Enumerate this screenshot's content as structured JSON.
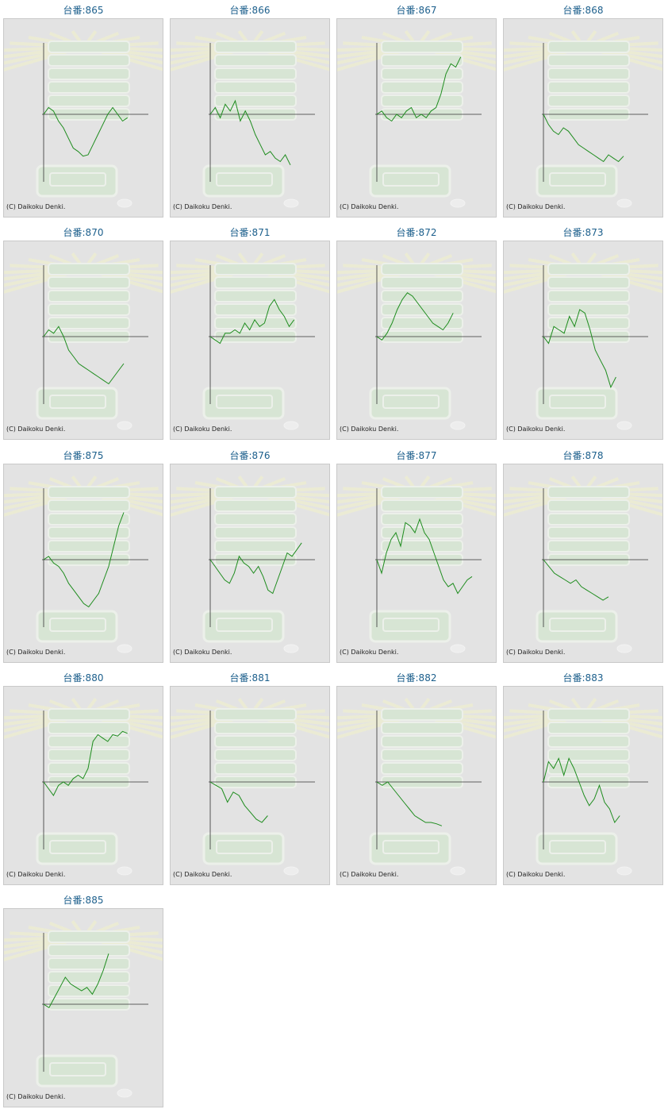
{
  "copyright": "(C) Daikoku Denki.",
  "colors": {
    "line": "#1e8c1e",
    "axis": "#333333",
    "title": "#1c5f8c",
    "panel": "#e3e3e3"
  },
  "chart_data": [
    {
      "type": "line",
      "title": "台番:865",
      "ylim": [
        -1,
        1
      ],
      "values": [
        0,
        0.1,
        0.05,
        -0.1,
        -0.2,
        -0.35,
        -0.5,
        -0.55,
        -0.62,
        -0.6,
        -0.45,
        -0.3,
        -0.15,
        0,
        0.1,
        0,
        -0.1,
        -0.05
      ]
    },
    {
      "type": "line",
      "title": "台番:866",
      "ylim": [
        -1,
        1
      ],
      "values": [
        0,
        0.1,
        -0.05,
        0.15,
        0.05,
        0.2,
        -0.1,
        0.05,
        -0.1,
        -0.3,
        -0.45,
        -0.6,
        -0.55,
        -0.65,
        -0.7,
        -0.6,
        -0.75
      ]
    },
    {
      "type": "line",
      "title": "台番:867",
      "ylim": [
        -1,
        1
      ],
      "values": [
        0,
        0.05,
        -0.05,
        -0.1,
        0,
        -0.05,
        0.05,
        0.1,
        -0.05,
        0,
        -0.05,
        0.05,
        0.1,
        0.3,
        0.6,
        0.75,
        0.7,
        0.85
      ]
    },
    {
      "type": "line",
      "title": "台番:868",
      "ylim": [
        -1,
        1
      ],
      "values": [
        0,
        -0.15,
        -0.25,
        -0.3,
        -0.2,
        -0.25,
        -0.35,
        -0.45,
        -0.5,
        -0.55,
        -0.6,
        -0.65,
        -0.7,
        -0.6,
        -0.65,
        -0.7,
        -0.62
      ]
    },
    {
      "type": "line",
      "title": "台番:870",
      "ylim": [
        -1,
        1
      ],
      "values": [
        0,
        0.1,
        0.05,
        0.15,
        0,
        -0.2,
        -0.3,
        -0.4,
        -0.45,
        -0.5,
        -0.55,
        -0.6,
        -0.65,
        -0.7,
        -0.6,
        -0.5,
        -0.4
      ]
    },
    {
      "type": "line",
      "title": "台番:871",
      "ylim": [
        -1,
        1
      ],
      "values": [
        0,
        -0.05,
        -0.1,
        0.05,
        0.05,
        0.1,
        0.05,
        0.2,
        0.1,
        0.25,
        0.15,
        0.2,
        0.45,
        0.55,
        0.4,
        0.3,
        0.15,
        0.25
      ]
    },
    {
      "type": "line",
      "title": "台番:872",
      "ylim": [
        -1,
        1
      ],
      "values": [
        0,
        -0.05,
        0.05,
        0.2,
        0.4,
        0.55,
        0.65,
        0.6,
        0.5,
        0.4,
        0.3,
        0.2,
        0.15,
        0.1,
        0.2,
        0.35
      ]
    },
    {
      "type": "line",
      "title": "台番:873",
      "ylim": [
        -1,
        1
      ],
      "values": [
        0,
        -0.1,
        0.15,
        0.1,
        0.05,
        0.3,
        0.15,
        0.4,
        0.35,
        0.1,
        -0.2,
        -0.35,
        -0.5,
        -0.75,
        -0.6
      ]
    },
    {
      "type": "line",
      "title": "台番:875",
      "ylim": [
        -1,
        1
      ],
      "values": [
        0,
        0.05,
        -0.05,
        -0.1,
        -0.2,
        -0.35,
        -0.45,
        -0.55,
        -0.65,
        -0.7,
        -0.6,
        -0.5,
        -0.3,
        -0.1,
        0.2,
        0.5,
        0.7
      ]
    },
    {
      "type": "line",
      "title": "台番:876",
      "ylim": [
        -1,
        1
      ],
      "values": [
        0,
        -0.1,
        -0.2,
        -0.3,
        -0.35,
        -0.2,
        0.05,
        -0.05,
        -0.1,
        -0.2,
        -0.1,
        -0.25,
        -0.45,
        -0.5,
        -0.3,
        -0.1,
        0.1,
        0.05,
        0.15,
        0.25
      ]
    },
    {
      "type": "line",
      "title": "台番:877",
      "ylim": [
        -1,
        1
      ],
      "values": [
        0,
        -0.2,
        0.1,
        0.3,
        0.4,
        0.2,
        0.55,
        0.5,
        0.4,
        0.6,
        0.4,
        0.3,
        0.1,
        -0.1,
        -0.3,
        -0.4,
        -0.35,
        -0.5,
        -0.4,
        -0.3,
        -0.25
      ]
    },
    {
      "type": "line",
      "title": "台番:878",
      "ylim": [
        -1,
        1
      ],
      "values": [
        0,
        -0.1,
        -0.2,
        -0.25,
        -0.3,
        -0.35,
        -0.3,
        -0.4,
        -0.45,
        -0.5,
        -0.55,
        -0.6,
        -0.55
      ]
    },
    {
      "type": "line",
      "title": "台番:880",
      "ylim": [
        -1,
        1
      ],
      "values": [
        0,
        -0.1,
        -0.2,
        -0.05,
        0,
        -0.05,
        0.05,
        0.1,
        0.05,
        0.2,
        0.6,
        0.7,
        0.65,
        0.6,
        0.7,
        0.68,
        0.75,
        0.72
      ]
    },
    {
      "type": "line",
      "title": "台番:881",
      "ylim": [
        -1,
        1
      ],
      "values": [
        0,
        -0.05,
        -0.1,
        -0.3,
        -0.15,
        -0.2,
        -0.35,
        -0.45,
        -0.55,
        -0.6,
        -0.5
      ]
    },
    {
      "type": "line",
      "title": "台番:882",
      "ylim": [
        -1,
        1
      ],
      "values": [
        0,
        -0.05,
        0,
        -0.1,
        -0.2,
        -0.3,
        -0.4,
        -0.5,
        -0.55,
        -0.6,
        -0.6,
        -0.62,
        -0.65
      ]
    },
    {
      "type": "line",
      "title": "台番:883",
      "ylim": [
        -1,
        1
      ],
      "values": [
        0,
        0.3,
        0.2,
        0.35,
        0.1,
        0.35,
        0.2,
        0,
        -0.2,
        -0.35,
        -0.25,
        -0.05,
        -0.3,
        -0.4,
        -0.6,
        -0.5
      ]
    },
    {
      "type": "line",
      "title": "台番:885",
      "ylim": [
        -1,
        1
      ],
      "values": [
        0,
        -0.05,
        0.1,
        0.25,
        0.4,
        0.3,
        0.25,
        0.2,
        0.25,
        0.15,
        0.3,
        0.5,
        0.75
      ]
    }
  ]
}
